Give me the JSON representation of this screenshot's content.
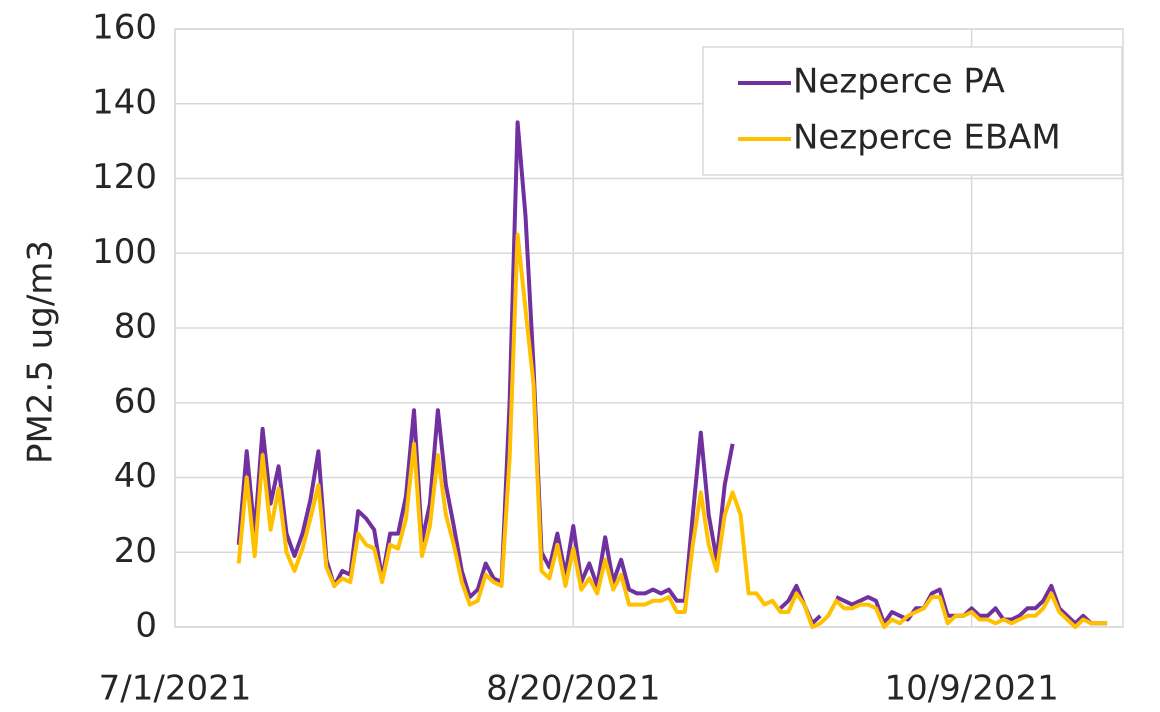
{
  "chart_data": {
    "type": "line",
    "ylabel": "PM2.5 ug/m3",
    "x": [
      "7/9/2021",
      "7/10/2021",
      "7/11/2021",
      "7/12/2021",
      "7/13/2021",
      "7/14/2021",
      "7/15/2021",
      "7/16/2021",
      "7/17/2021",
      "7/18/2021",
      "7/19/2021",
      "7/20/2021",
      "7/21/2021",
      "7/22/2021",
      "7/23/2021",
      "7/24/2021",
      "7/25/2021",
      "7/26/2021",
      "7/27/2021",
      "7/28/2021",
      "7/29/2021",
      "7/30/2021",
      "7/31/2021",
      "8/1/2021",
      "8/2/2021",
      "8/3/2021",
      "8/4/2021",
      "8/5/2021",
      "8/6/2021",
      "8/7/2021",
      "8/8/2021",
      "8/9/2021",
      "8/10/2021",
      "8/11/2021",
      "8/12/2021",
      "8/13/2021",
      "8/14/2021",
      "8/15/2021",
      "8/16/2021",
      "8/17/2021",
      "8/18/2021",
      "8/19/2021",
      "8/20/2021",
      "8/21/2021",
      "8/22/2021",
      "8/23/2021",
      "8/24/2021",
      "8/25/2021",
      "8/26/2021",
      "8/27/2021",
      "8/28/2021",
      "8/29/2021",
      "8/30/2021",
      "8/31/2021",
      "9/1/2021",
      "9/2/2021",
      "9/3/2021",
      "9/4/2021",
      "9/5/2021",
      "9/6/2021",
      "9/7/2021",
      "9/8/2021",
      "9/9/2021",
      "9/10/2021",
      "9/11/2021",
      "9/12/2021",
      "9/13/2021",
      "9/14/2021",
      "9/15/2021",
      "9/16/2021",
      "9/17/2021",
      "9/18/2021",
      "9/19/2021",
      "9/20/2021",
      "9/21/2021",
      "9/22/2021",
      "9/23/2021",
      "9/24/2021",
      "9/25/2021",
      "9/26/2021",
      "9/27/2021",
      "9/28/2021",
      "9/29/2021",
      "9/30/2021",
      "10/1/2021",
      "10/2/2021",
      "10/3/2021",
      "10/4/2021",
      "10/5/2021",
      "10/6/2021",
      "10/7/2021",
      "10/8/2021",
      "10/9/2021",
      "10/10/2021",
      "10/11/2021",
      "10/12/2021",
      "10/13/2021",
      "10/14/2021",
      "10/15/2021",
      "10/16/2021",
      "10/17/2021",
      "10/18/2021",
      "10/19/2021",
      "10/20/2021",
      "10/21/2021",
      "10/22/2021",
      "10/23/2021",
      "10/24/2021",
      "10/25/2021",
      "10/26/2021"
    ],
    "series": [
      {
        "name": "Nezperce PA",
        "color": "#7030a0",
        "values": [
          22,
          47,
          25,
          53,
          33,
          43,
          25,
          19,
          25,
          34,
          47,
          18,
          11,
          15,
          14,
          31,
          29,
          26,
          13,
          25,
          25,
          35,
          58,
          23,
          33,
          58,
          38,
          27,
          15,
          8,
          10,
          17,
          13,
          12,
          60,
          135,
          110,
          70,
          20,
          16,
          25,
          14,
          27,
          12,
          17,
          11,
          24,
          12,
          18,
          10,
          9,
          9,
          10,
          9,
          10,
          7,
          7,
          30,
          52,
          30,
          18,
          38,
          49,
          null,
          null,
          null,
          null,
          null,
          5,
          7,
          11,
          6,
          1,
          3,
          null,
          8,
          7,
          6,
          7,
          8,
          7,
          1,
          4,
          3,
          2,
          5,
          5,
          9,
          10,
          3,
          3,
          3,
          5,
          3,
          3,
          5,
          2,
          2,
          3,
          5,
          5,
          7,
          11,
          5,
          3,
          1,
          3,
          1,
          1,
          1
        ]
      },
      {
        "name": "Nezperce EBAM",
        "color": "#ffc000",
        "values": [
          17,
          40,
          19,
          46,
          26,
          37,
          20,
          15,
          21,
          29,
          38,
          16,
          11,
          13,
          12,
          25,
          22,
          21,
          12,
          22,
          21,
          29,
          49,
          19,
          27,
          46,
          30,
          22,
          12,
          6,
          7,
          14,
          12,
          11,
          45,
          105,
          85,
          65,
          15,
          13,
          22,
          11,
          21,
          10,
          13,
          9,
          18,
          10,
          14,
          6,
          6,
          6,
          7,
          7,
          8,
          4,
          4,
          22,
          36,
          22,
          15,
          30,
          36,
          30,
          9,
          9,
          6,
          7,
          4,
          4,
          9,
          6,
          0,
          1,
          3,
          7,
          5,
          5,
          6,
          6,
          5,
          0,
          2,
          1,
          3,
          4,
          5,
          8,
          8,
          1,
          3,
          3,
          4,
          2,
          2,
          1,
          2,
          1,
          2,
          3,
          3,
          5,
          9,
          4,
          2,
          0,
          2,
          1,
          1,
          1
        ]
      }
    ],
    "xlim": [
      "7/1/2021",
      "10/28/2021"
    ],
    "xticks": [
      "7/1/2021",
      "8/20/2021",
      "10/9/2021"
    ],
    "ylim": [
      0,
      160
    ],
    "yticks": [
      0,
      20,
      40,
      60,
      80,
      100,
      120,
      140,
      160
    ],
    "grid": true,
    "legend": "top-right"
  }
}
